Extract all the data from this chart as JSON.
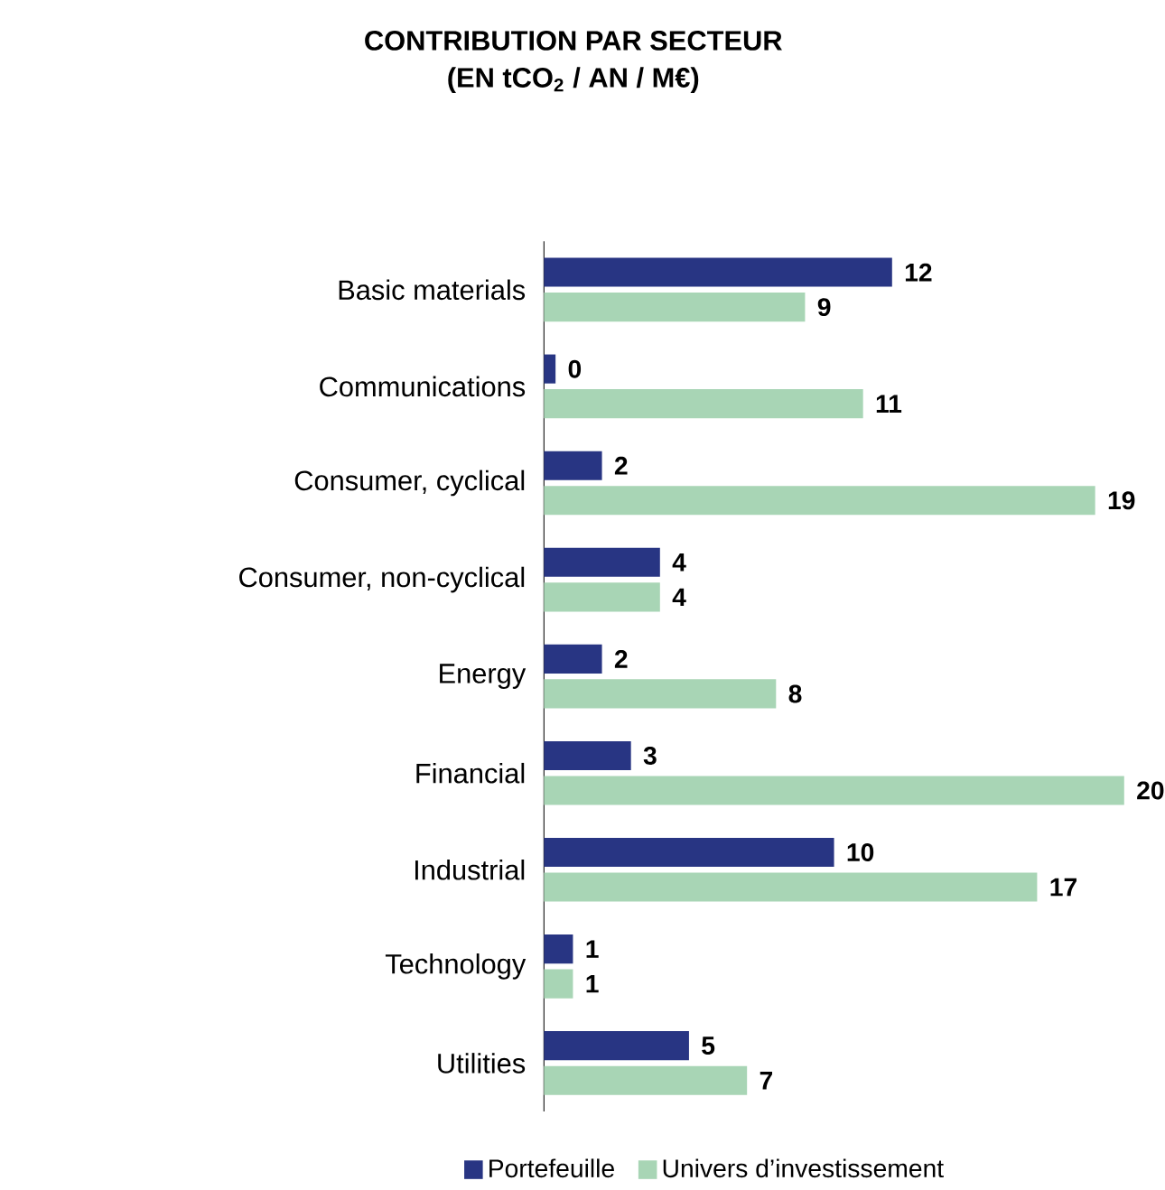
{
  "chart_data": {
    "type": "bar",
    "orientation": "horizontal",
    "title": "CONTRIBUTION PAR SECTEUR",
    "subtitle": "(EN tCO$_{2}$ / AN / M€)",
    "categories": [
      "Basic materials",
      "Communications",
      "Consumer, cyclical",
      "Consumer, non-cyclical",
      "Energy",
      "Financial",
      "Industrial",
      "Technology",
      "Utilities"
    ],
    "series": [
      {
        "name": "Portefeuille",
        "color": "#283583",
        "values": [
          12,
          0.4,
          2,
          4,
          2,
          3,
          10,
          1,
          5
        ],
        "value_labels": [
          "12",
          "0",
          "2",
          "4",
          "2",
          "3",
          "10",
          "1",
          "5"
        ]
      },
      {
        "name": "Univers d’investissement",
        "color": "#a8d5b5",
        "values": [
          9,
          11,
          19,
          4,
          8,
          20,
          17,
          1,
          7
        ],
        "value_labels": [
          "9",
          "11",
          "19",
          "4",
          "8",
          "20",
          "17",
          "1",
          "7"
        ]
      }
    ],
    "legend": "bottom"
  }
}
